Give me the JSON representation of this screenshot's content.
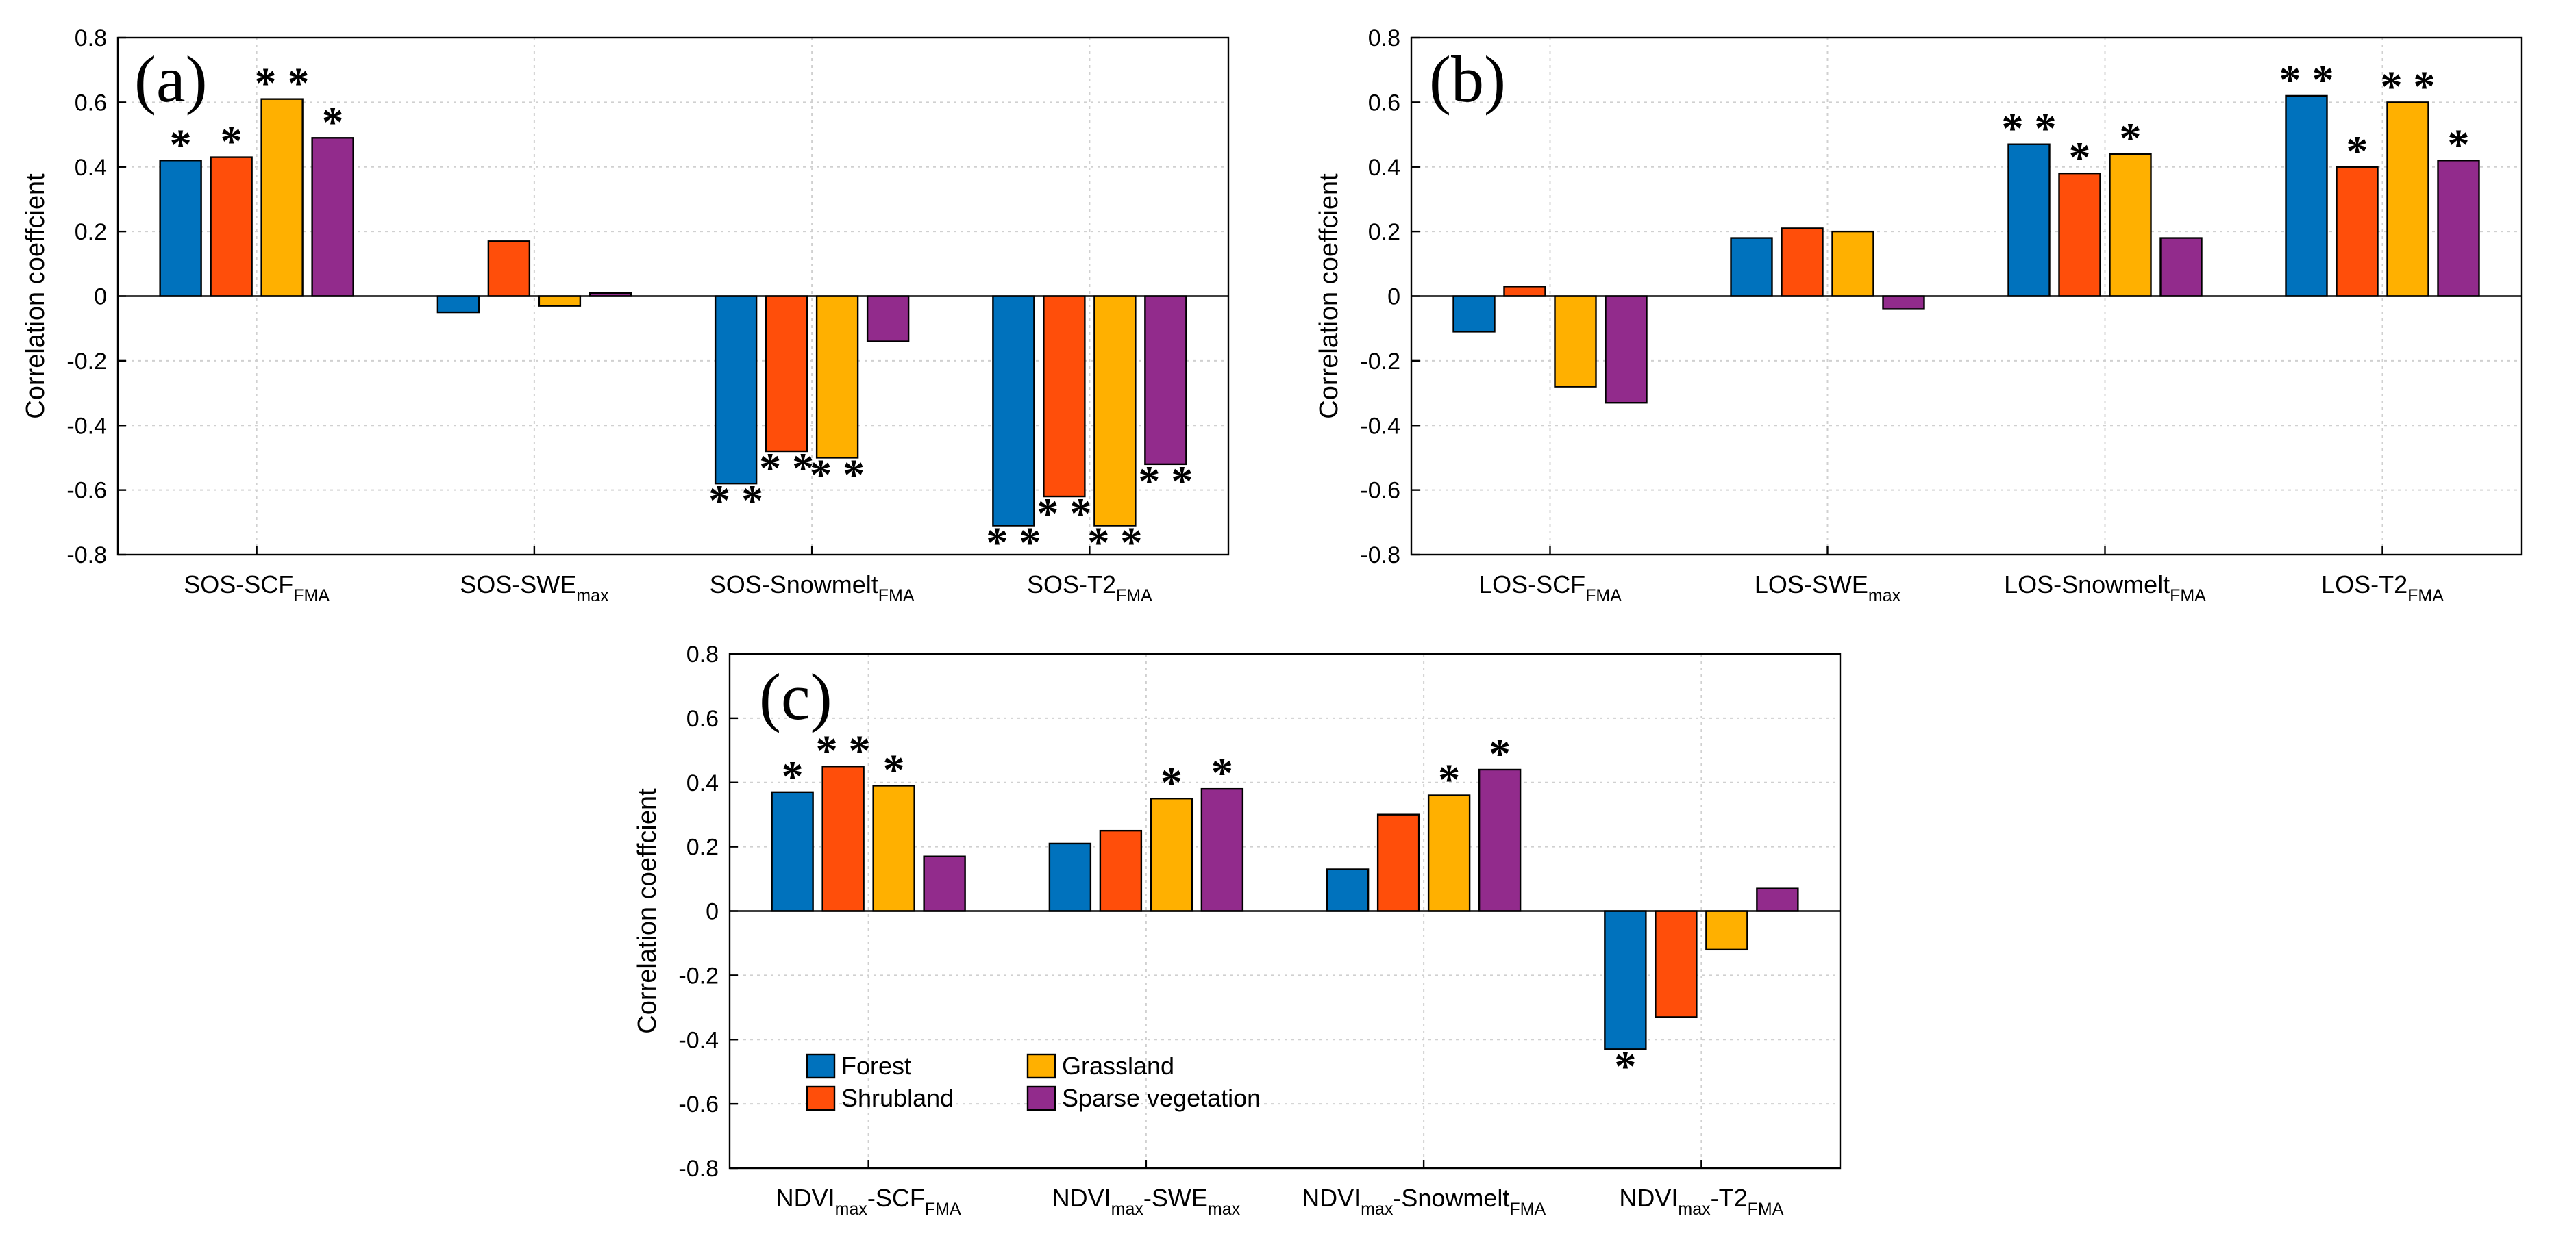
{
  "legend": {
    "items": [
      {
        "name": "Forest",
        "color": "#0072BD"
      },
      {
        "name": "Grassland",
        "color": "#FFB000"
      },
      {
        "name": "Shrubland",
        "color": "#FF4E0A"
      },
      {
        "name": "Sparse vegetation",
        "color": "#922B8C"
      }
    ]
  },
  "chart_data": [
    {
      "type": "bar",
      "panel_label": "(a)",
      "ylabel": "Correlation coeffcient",
      "ylim": [
        -0.8,
        0.8
      ],
      "yticks": [
        "-0.8",
        "-0.6",
        "-0.4",
        "-0.2",
        "0",
        "0.2",
        "0.4",
        "0.6",
        "0.8"
      ],
      "grid": true,
      "categories": [
        {
          "main": "SOS-SCF",
          "sub": "FMA",
          "tail": ""
        },
        {
          "main": "SOS-SWE",
          "sub": "max",
          "tail": ""
        },
        {
          "main": "SOS-Snowmelt",
          "sub": "FMA",
          "tail": ""
        },
        {
          "main": "SOS-T2",
          "sub": "FMA",
          "tail": ""
        }
      ],
      "series": [
        {
          "name": "Forest",
          "values": [
            0.42,
            -0.05,
            -0.58,
            -0.71
          ],
          "sig": [
            "*",
            "",
            "**",
            "**"
          ]
        },
        {
          "name": "Shrubland",
          "values": [
            0.43,
            0.17,
            -0.48,
            -0.62
          ],
          "sig": [
            "*",
            "",
            "**",
            "**"
          ]
        },
        {
          "name": "Grassland",
          "values": [
            0.61,
            -0.03,
            -0.5,
            -0.71
          ],
          "sig": [
            "**",
            "",
            "**",
            "**"
          ]
        },
        {
          "name": "Sparse vegetation",
          "values": [
            0.49,
            0.01,
            -0.14,
            -0.52
          ],
          "sig": [
            "*",
            "",
            "",
            "**"
          ]
        }
      ]
    },
    {
      "type": "bar",
      "panel_label": "(b)",
      "ylabel": "Correlation coeffcient",
      "ylim": [
        -0.8,
        0.8
      ],
      "yticks": [
        "-0.8",
        "-0.6",
        "-0.4",
        "-0.2",
        "0",
        "0.2",
        "0.4",
        "0.6",
        "0.8"
      ],
      "grid": true,
      "categories": [
        {
          "main": "LOS-SCF",
          "sub": "FMA",
          "tail": ""
        },
        {
          "main": "LOS-SWE",
          "sub": "max",
          "tail": ""
        },
        {
          "main": "LOS-Snowmelt",
          "sub": "FMA",
          "tail": ""
        },
        {
          "main": "LOS-T2",
          "sub": "FMA",
          "tail": ""
        }
      ],
      "series": [
        {
          "name": "Forest",
          "values": [
            -0.11,
            0.18,
            0.47,
            0.62
          ],
          "sig": [
            "",
            "",
            "**",
            "**"
          ]
        },
        {
          "name": "Shrubland",
          "values": [
            0.03,
            0.21,
            0.38,
            0.4
          ],
          "sig": [
            "",
            "",
            "*",
            "*"
          ]
        },
        {
          "name": "Grassland",
          "values": [
            -0.28,
            0.2,
            0.44,
            0.6
          ],
          "sig": [
            "",
            "",
            "*",
            "**"
          ]
        },
        {
          "name": "Sparse vegetation",
          "values": [
            -0.33,
            -0.04,
            0.18,
            0.42
          ],
          "sig": [
            "",
            "",
            "",
            "*"
          ]
        }
      ]
    },
    {
      "type": "bar",
      "panel_label": "(c)",
      "ylabel": "Correlation coeffcient",
      "ylim": [
        -0.8,
        0.8
      ],
      "yticks": [
        "-0.8",
        "-0.6",
        "-0.4",
        "-0.2",
        "0",
        "0.2",
        "0.4",
        "0.6",
        "0.8"
      ],
      "grid": true,
      "legend_location": "lower-left",
      "categories": [
        {
          "main": "NDVI",
          "sub": "max",
          "tail": "-SCF",
          "sub2": "FMA"
        },
        {
          "main": "NDVI",
          "sub": "max",
          "tail": "-SWE",
          "sub2": "max"
        },
        {
          "main": "NDVI",
          "sub": "max",
          "tail": "-Snowmelt",
          "sub2": "FMA"
        },
        {
          "main": "NDVI",
          "sub": "max",
          "tail": "-T2",
          "sub2": "FMA"
        }
      ],
      "series": [
        {
          "name": "Forest",
          "values": [
            0.37,
            0.21,
            0.13,
            -0.43
          ],
          "sig": [
            "*",
            "",
            "",
            "*"
          ]
        },
        {
          "name": "Shrubland",
          "values": [
            0.45,
            0.25,
            0.3,
            -0.33
          ],
          "sig": [
            "**",
            "",
            "",
            ""
          ]
        },
        {
          "name": "Grassland",
          "values": [
            0.39,
            0.35,
            0.36,
            -0.12
          ],
          "sig": [
            "*",
            "*",
            "*",
            ""
          ]
        },
        {
          "name": "Sparse vegetation",
          "values": [
            0.17,
            0.38,
            0.44,
            0.07
          ],
          "sig": [
            "",
            "*",
            "*",
            ""
          ]
        }
      ]
    }
  ]
}
